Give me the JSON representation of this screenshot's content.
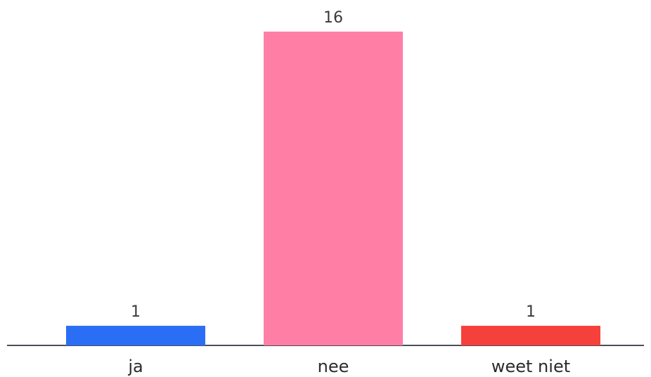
{
  "chart_data": {
    "type": "bar",
    "categories": [
      "ja",
      "nee",
      "weet niet"
    ],
    "values": [
      1,
      16,
      1
    ],
    "colors": [
      "#2a6ef5",
      "#ff7ea6",
      "#f5403c"
    ],
    "axis_color": "#4a4f58",
    "label_color": "#2b2b2b",
    "ylim": [
      0,
      16
    ],
    "grid": false,
    "legend": "none",
    "data_labels": true
  }
}
